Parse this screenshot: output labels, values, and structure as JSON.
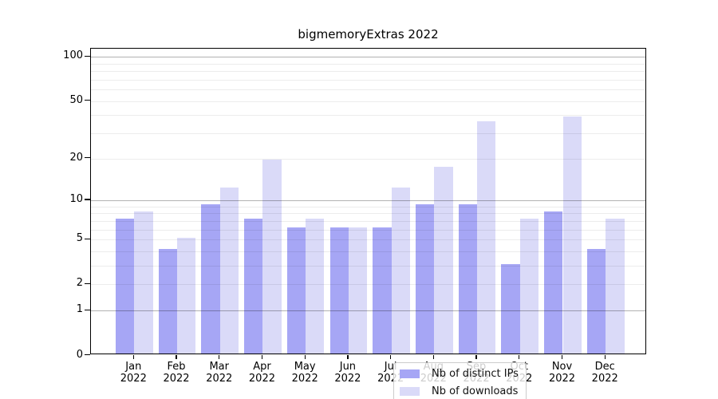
{
  "chart_data": {
    "type": "bar",
    "title": "bigmemoryExtras 2022",
    "categories": [
      "Jan 2022",
      "Feb 2022",
      "Mar 2022",
      "Apr 2022",
      "May 2022",
      "Jun 2022",
      "Jul 2022",
      "Aug 2022",
      "Sep 2022",
      "Oct 2022",
      "Nov 2022",
      "Dec 2022"
    ],
    "series": [
      {
        "name": "Nb of distinct IPs",
        "color": "#a6a6f5",
        "values": [
          7,
          4,
          9,
          7,
          6,
          6,
          6,
          9,
          9,
          3,
          8,
          4
        ]
      },
      {
        "name": "Nb of downloads",
        "color": "#dadaf8",
        "values": [
          8,
          5,
          12,
          19,
          7,
          6,
          12,
          17,
          35,
          7,
          38,
          7
        ]
      }
    ],
    "xlabel": "",
    "ylabel": "",
    "yscale": "log1p",
    "ylim": [
      0,
      114
    ],
    "yticks": [
      0,
      1,
      2,
      5,
      10,
      20,
      50,
      100
    ],
    "major_gridlines": [
      1,
      10,
      100
    ],
    "minor_gridlines": [
      2,
      3,
      4,
      5,
      6,
      7,
      8,
      9,
      20,
      30,
      40,
      50,
      60,
      70,
      80,
      90
    ],
    "grid": true,
    "grid_above_bars": true,
    "legend_position": "inside-bottom-center",
    "colors": {
      "background": "#ffffff",
      "axis": "#000000",
      "grid_minor": "rgba(0,0,0,0.075)",
      "grid_major": "rgba(0,0,0,0.30)",
      "legend_background": "rgba(255,255,255,0.8)",
      "legend_border": "#cccccc",
      "text": "#000000"
    }
  }
}
